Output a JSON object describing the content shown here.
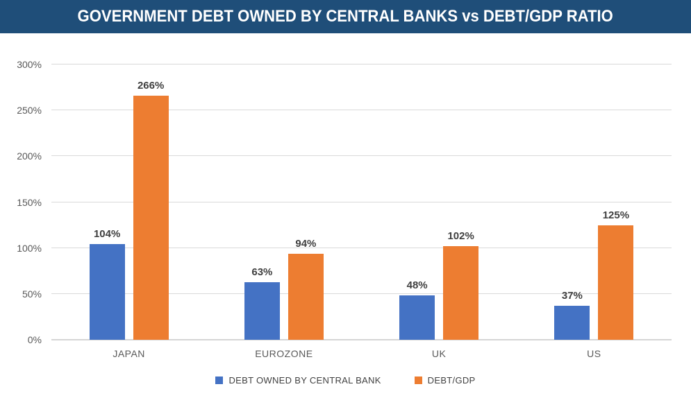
{
  "header": {
    "title": "GOVERNMENT DEBT OWNED BY CENTRAL BANKS vs DEBT/GDP RATIO",
    "bg_color": "#1F4E79",
    "text_color": "#FFFFFF"
  },
  "chart_data": {
    "type": "bar",
    "title": "GOVERNMENT DEBT OWNED BY CENTRAL BANKS vs DEBT/GDP RATIO",
    "categories": [
      "JAPAN",
      "EUROZONE",
      "UK",
      "US"
    ],
    "series": [
      {
        "name": "DEBT OWNED BY CENTRAL BANK",
        "color": "#4472C4",
        "values": [
          104,
          63,
          48,
          37
        ],
        "data_labels": [
          "104%",
          "63%",
          "48%",
          "37%"
        ]
      },
      {
        "name": "DEBT/GDP",
        "color": "#ED7D31",
        "values": [
          266,
          94,
          102,
          125
        ],
        "data_labels": [
          "266%",
          "94%",
          "102%",
          "125%"
        ]
      }
    ],
    "xlabel": "",
    "ylabel": "",
    "ylim": [
      0,
      300
    ],
    "ytick_step": 50,
    "ytick_labels": [
      "0%",
      "50%",
      "100%",
      "150%",
      "200%",
      "250%",
      "300%"
    ],
    "grid": true,
    "gridline_color": "#D9D9D9",
    "tick_label_color": "#595959",
    "data_label_color": "#3F3F3F",
    "legend_position": "bottom"
  }
}
